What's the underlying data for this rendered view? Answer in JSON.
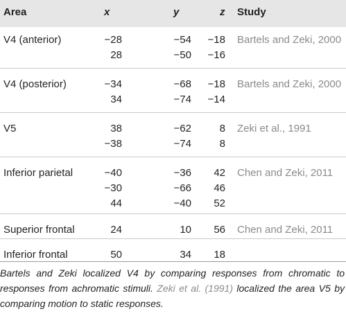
{
  "table": {
    "headers": {
      "area": "Area",
      "x": "x",
      "y": "y",
      "z": "z",
      "study": "Study"
    },
    "groups": [
      {
        "area": "V4 (anterior)",
        "rows": [
          {
            "x": "−28",
            "y": "−54",
            "z": "−18"
          },
          {
            "x": "28",
            "y": "−50",
            "z": "−16"
          }
        ],
        "study": "Bartels and Zeki, 2000"
      },
      {
        "area": "V4 (posterior)",
        "rows": [
          {
            "x": "−34",
            "y": "−68",
            "z": "−18"
          },
          {
            "x": "34",
            "y": "−74",
            "z": "−14"
          }
        ],
        "study": "Bartels and Zeki, 2000"
      },
      {
        "area": "V5",
        "rows": [
          {
            "x": "38",
            "y": "−62",
            "z": "8"
          },
          {
            "x": "−38",
            "y": "−74",
            "z": "8"
          }
        ],
        "study": "Zeki et al., 1991"
      },
      {
        "area": "Inferior parietal",
        "rows": [
          {
            "x": "−40",
            "y": "−36",
            "z": "42"
          },
          {
            "x": "−30",
            "y": "−66",
            "z": "46"
          },
          {
            "x": "44",
            "y": "−40",
            "z": "52"
          }
        ],
        "study": "Chen and Zeki, 2011"
      },
      {
        "area": "Superior frontal",
        "rows": [
          {
            "x": "24",
            "y": "10",
            "z": "56"
          }
        ],
        "study": "Chen and Zeki, 2011"
      },
      {
        "area": "Inferior frontal",
        "rows": [
          {
            "x": "50",
            "y": "34",
            "z": "18"
          }
        ],
        "study": ""
      }
    ]
  },
  "caption": {
    "part1": "Bartels and Zeki localized V4 by comparing responses from chromatic to responses from achromatic stimuli. ",
    "link": "Zeki et al. (1991)",
    "part2": " localized the area V5 by comparing motion to static responses."
  }
}
